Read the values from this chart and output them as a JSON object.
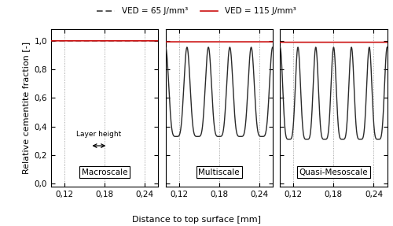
{
  "title": "",
  "xlabel": "Distance to top surface [mm]",
  "ylabel": "Relative cementite fraction [-]",
  "xlim": [
    0.1,
    0.26
  ],
  "ylim": [
    -0.02,
    1.08
  ],
  "xticks": [
    0.12,
    0.18,
    0.24
  ],
  "yticks": [
    0.0,
    0.2,
    0.4,
    0.6,
    0.8,
    1.0
  ],
  "legend_labels": [
    "VED = 65 J/mm³",
    "VED = 115 J/mm³"
  ],
  "gray_color": "#2a2a2a",
  "red_color": "#cc1111",
  "background_color": "#ffffff",
  "subplot_labels": [
    "Macroscale",
    "Multiscale",
    "Quasi-Mesoscale"
  ],
  "layer_height_text": "Layer height",
  "n_osc_multiscale": 5,
  "osc_min_multiscale": 0.33,
  "osc_max_multiscale": 0.955,
  "n_osc_qmeso": 6,
  "osc_min_qmeso": 0.31,
  "osc_max_qmeso": 0.955,
  "red_level_multiscale": 0.993,
  "red_level_qmeso": 0.99
}
